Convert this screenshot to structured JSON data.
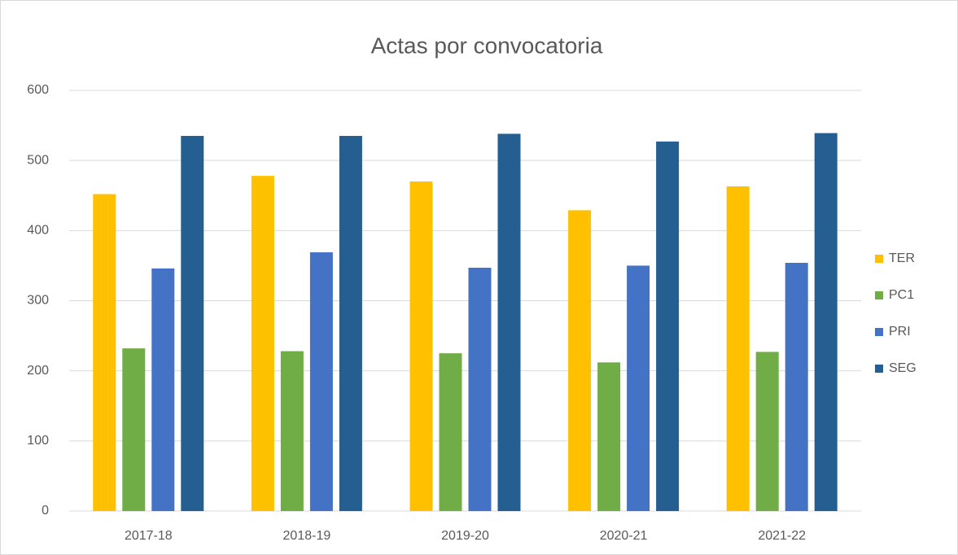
{
  "chart_data": {
    "type": "bar",
    "title": "Actas por convocatoria",
    "categories": [
      "2017-18",
      "2018-19",
      "2019-20",
      "2020-21",
      "2021-22"
    ],
    "series": [
      {
        "name": "TER",
        "color": "#FFC000",
        "values": [
          452,
          478,
          470,
          429,
          463
        ]
      },
      {
        "name": "PC1",
        "color": "#70AD47",
        "values": [
          232,
          228,
          225,
          212,
          227
        ]
      },
      {
        "name": "PRI",
        "color": "#4472C4",
        "values": [
          346,
          369,
          347,
          350,
          354
        ]
      },
      {
        "name": "SEG",
        "color": "#255E91",
        "values": [
          535,
          535,
          538,
          527,
          539
        ]
      }
    ],
    "ylim": [
      0,
      600
    ],
    "yticks": [
      0,
      100,
      200,
      300,
      400,
      500,
      600
    ],
    "grid": true,
    "legend": "right"
  }
}
